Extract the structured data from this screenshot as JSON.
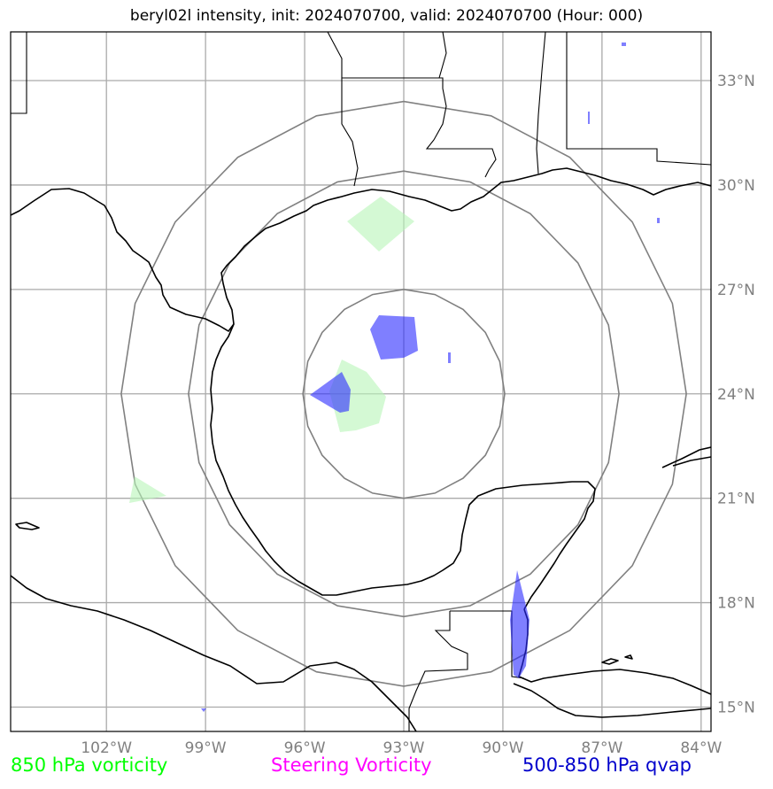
{
  "title": "beryl02l intensity, init: 2024070700, valid: 2024070700 (Hour: 000)",
  "map": {
    "lon_range": [
      -104.9,
      -83.7
    ],
    "lat_range": [
      14.3,
      34.4
    ],
    "lon_ticks": [
      {
        "value": -102,
        "label": "102°W"
      },
      {
        "value": -99,
        "label": "99°W"
      },
      {
        "value": -96,
        "label": "96°W"
      },
      {
        "value": -93,
        "label": "93°W"
      },
      {
        "value": -90,
        "label": "90°W"
      },
      {
        "value": -87,
        "label": "87°W"
      },
      {
        "value": -84,
        "label": "84°W"
      }
    ],
    "lat_ticks": [
      {
        "value": 15,
        "label": "15°N"
      },
      {
        "value": 18,
        "label": "18°N"
      },
      {
        "value": 21,
        "label": "21°N"
      },
      {
        "value": 24,
        "label": "24°N"
      },
      {
        "value": 27,
        "label": "27°N"
      },
      {
        "value": 30,
        "label": "30°N"
      },
      {
        "value": 33,
        "label": "33°N"
      }
    ],
    "grid": true,
    "range_rings": {
      "center": [
        -93.0,
        24.0
      ],
      "radii_deg": [
        3.0,
        6.4,
        8.4
      ]
    },
    "layers": [
      {
        "name": "850 hPa vorticity",
        "color": "#00ff00"
      },
      {
        "name": "Steering Vorticity",
        "color": "#ff00ff"
      },
      {
        "name": "500-850 hPa qvap",
        "color": "#0000cc"
      }
    ]
  },
  "legend": {
    "vort850": "850 hPa vorticity",
    "steering": "Steering Vorticity",
    "qvap": "500-850 hPa qvap"
  }
}
